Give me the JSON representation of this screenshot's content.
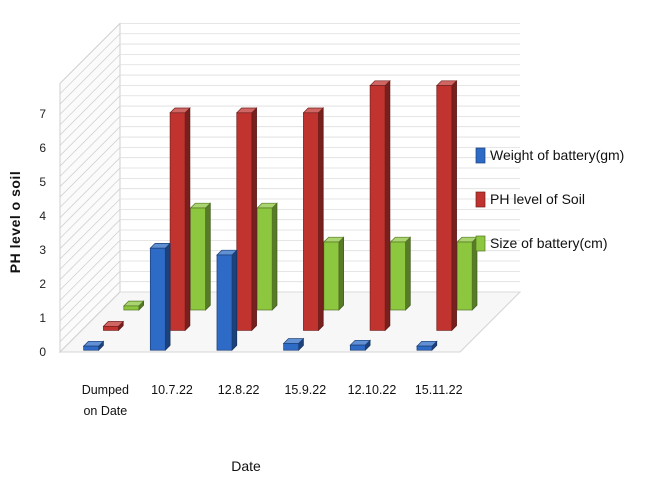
{
  "chart_data": {
    "type": "bar",
    "subtype": "3d-clustered-column",
    "title": "",
    "xlabel": "Date",
    "ylabel": "PH level o soil",
    "ylim": [
      0,
      7
    ],
    "yticks": [
      0,
      1,
      2,
      3,
      4,
      5,
      6,
      7
    ],
    "grid": true,
    "legend_position": "right",
    "categories": [
      "Dumped on Date",
      "10.7.22",
      "12.8.22",
      "15.9.22",
      "12.10.22",
      "15.11.22"
    ],
    "category_lines": [
      [
        "Dumped",
        "on Date"
      ],
      [
        "10.7.22"
      ],
      [
        "12.8.22"
      ],
      [
        "15.9.22"
      ],
      [
        "12.10.22"
      ],
      [
        "15.11.22"
      ]
    ],
    "series": [
      {
        "name": "Weight of battery(gm)",
        "color": "#2e6bc6",
        "values": [
          0,
          3,
          2.8,
          0.2,
          0.15,
          0.1
        ]
      },
      {
        "name": "PH level of Soil",
        "color": "#c0332f",
        "values": [
          0,
          6.4,
          6.4,
          6.4,
          7.2,
          7.2
        ]
      },
      {
        "name": "Size of battery(cm)",
        "color": "#8dc63f",
        "values": [
          0,
          3,
          3,
          2,
          2,
          2
        ]
      }
    ]
  }
}
